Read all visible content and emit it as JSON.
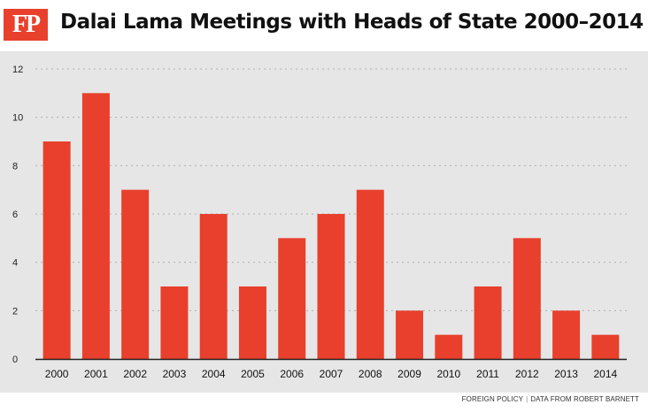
{
  "brand": {
    "logo_text": "FP",
    "accent": "#e8402c"
  },
  "chart_data": {
    "type": "bar",
    "title": "Dalai Lama Meetings with Heads of State 2000–2014",
    "xlabel": "",
    "ylabel": "",
    "categories": [
      "2000",
      "2001",
      "2002",
      "2003",
      "2004",
      "2005",
      "2006",
      "2007",
      "2008",
      "2009",
      "2010",
      "2011",
      "2012",
      "2013",
      "2014"
    ],
    "values": [
      9,
      11,
      7,
      3,
      6,
      3,
      5,
      6,
      7,
      2,
      1,
      3,
      5,
      2,
      1
    ],
    "ylim": [
      0,
      12
    ],
    "yticks": [
      0,
      2,
      4,
      6,
      8,
      10,
      12
    ],
    "grid": true,
    "bar_color": "#e8402c",
    "background": "#e6e6e6"
  },
  "footer": {
    "publisher": "FOREIGN POLICY",
    "source": "DATA FROM ROBERT BARNETT"
  }
}
